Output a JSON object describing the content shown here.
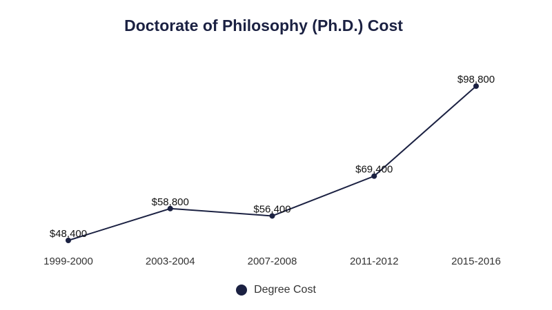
{
  "colors": {
    "series": "#1b2142",
    "text": "#333333",
    "label": "#111111"
  },
  "chart_data": {
    "type": "line",
    "title": "Doctorate of Philosophy (Ph.D.) Cost",
    "categories": [
      "1999-2000",
      "2003-2004",
      "2007-2008",
      "2011-2012",
      "2015-2016"
    ],
    "series": [
      {
        "name": "Degree Cost",
        "values": [
          48400,
          58800,
          56400,
          69400,
          98800
        ],
        "labels": [
          "$48,400",
          "$58,800",
          "$56,400",
          "$69,400",
          "$98,800"
        ]
      }
    ],
    "ylim": [
      48400,
      98800
    ],
    "grid": false,
    "legend": "bottom-center"
  }
}
